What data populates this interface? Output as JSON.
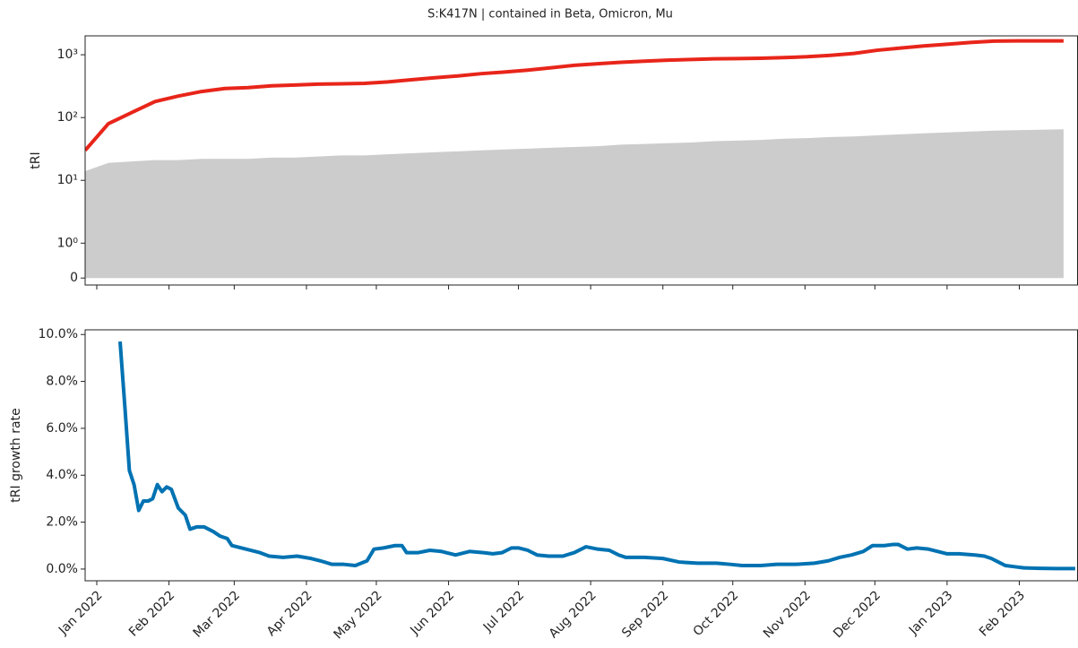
{
  "chart_data": [
    {
      "type": "line",
      "title": "S:K417N | contained in Beta, Omicron, Mu",
      "ylabel": "tRI",
      "yscale": "symlog",
      "linthresh": 1,
      "linscale": 0.5,
      "x": [
        -5,
        5,
        15,
        25,
        35,
        45,
        55,
        65,
        75,
        85,
        95,
        105,
        115,
        125,
        135,
        145,
        155,
        165,
        175,
        185,
        195,
        205,
        215,
        225,
        235,
        245,
        255,
        265,
        275,
        285,
        295,
        305,
        315,
        325,
        335,
        345,
        355,
        365,
        375,
        385,
        395,
        405,
        415
      ],
      "series": [
        {
          "color": "#cccccc",
          "fill": true,
          "values": [
            14,
            19,
            20,
            21,
            21,
            22,
            22,
            22,
            23,
            23,
            24,
            25,
            25,
            26,
            27,
            28,
            29,
            30,
            31,
            32,
            33,
            34,
            35,
            37,
            38,
            39,
            40,
            42,
            43,
            44,
            46,
            47,
            49,
            50,
            52,
            54,
            56,
            58,
            60,
            62,
            63,
            64,
            65
          ]
        },
        {
          "color": "#e8251a",
          "fill": false,
          "values": [
            30,
            80,
            120,
            180,
            220,
            260,
            290,
            300,
            320,
            330,
            340,
            345,
            350,
            370,
            400,
            430,
            460,
            500,
            530,
            570,
            620,
            680,
            720,
            760,
            790,
            820,
            840,
            860,
            870,
            880,
            900,
            930,
            980,
            1050,
            1180,
            1280,
            1380,
            1470,
            1570,
            1650,
            1660,
            1660,
            1660
          ]
        }
      ],
      "xlim": [
        -5,
        421
      ],
      "xticks": [
        0,
        31,
        59,
        90,
        120,
        151,
        181,
        212,
        243,
        273,
        304,
        334,
        365,
        396
      ],
      "ylim": [
        -0.2,
        2000
      ],
      "yticks": [
        0,
        {
          "value": 1,
          "label": "10⁰"
        },
        {
          "value": 10,
          "label": "10¹"
        },
        {
          "value": 100,
          "label": "10²"
        },
        {
          "value": 1000,
          "label": "10³"
        }
      ]
    },
    {
      "type": "line",
      "ylabel": "tRI growth rate",
      "x": [
        10,
        12,
        14,
        16,
        18,
        20,
        22,
        24,
        26,
        28,
        30,
        32,
        35,
        38,
        40,
        43,
        46,
        50,
        53,
        56,
        58,
        62,
        66,
        70,
        74,
        80,
        86,
        92,
        96,
        101,
        106,
        111,
        116,
        119,
        123,
        128,
        131,
        133,
        138,
        143,
        148,
        154,
        160,
        166,
        170,
        174,
        178,
        181,
        185,
        189,
        194,
        200,
        205,
        210,
        215,
        220,
        224,
        227,
        235,
        243,
        250,
        258,
        266,
        272,
        277,
        285,
        292,
        300,
        308,
        314,
        319,
        324,
        329,
        333,
        338,
        342,
        344,
        348,
        352,
        357,
        361,
        365,
        370,
        377,
        381,
        384,
        387,
        390,
        394,
        398,
        405,
        412,
        420
      ],
      "series": [
        {
          "color": "#0072b2",
          "fill": false,
          "values": [
            9.7,
            7,
            4.2,
            3.6,
            2.5,
            2.9,
            2.9,
            3.0,
            3.6,
            3.3,
            3.5,
            3.4,
            2.6,
            2.3,
            1.7,
            1.8,
            1.8,
            1.6,
            1.4,
            1.3,
            1.0,
            0.9,
            0.8,
            0.7,
            0.55,
            0.5,
            0.55,
            0.45,
            0.35,
            0.2,
            0.2,
            0.15,
            0.35,
            0.85,
            0.9,
            1.0,
            1.0,
            0.7,
            0.7,
            0.8,
            0.75,
            0.6,
            0.75,
            0.7,
            0.65,
            0.7,
            0.9,
            0.9,
            0.8,
            0.6,
            0.55,
            0.55,
            0.7,
            0.95,
            0.85,
            0.8,
            0.6,
            0.5,
            0.5,
            0.45,
            0.3,
            0.25,
            0.25,
            0.2,
            0.15,
            0.15,
            0.2,
            0.2,
            0.25,
            0.35,
            0.5,
            0.6,
            0.75,
            1.0,
            1.0,
            1.05,
            1.05,
            0.85,
            0.9,
            0.85,
            0.75,
            0.65,
            0.65,
            0.6,
            0.55,
            0.45,
            0.3,
            0.15,
            0.1,
            0.05,
            0.03,
            0.02,
            0.02
          ]
        }
      ],
      "xlim": [
        -5,
        421
      ],
      "xticks": [
        {
          "value": 0,
          "label": "Jan 2022"
        },
        {
          "value": 31,
          "label": "Feb 2022"
        },
        {
          "value": 59,
          "label": "Mar 2022"
        },
        {
          "value": 90,
          "label": "Apr 2022"
        },
        {
          "value": 120,
          "label": "May 2022"
        },
        {
          "value": 151,
          "label": "Jun 2022"
        },
        {
          "value": 181,
          "label": "Jul 2022"
        },
        {
          "value": 212,
          "label": "Aug 2022"
        },
        {
          "value": 243,
          "label": "Sep 2022"
        },
        {
          "value": 273,
          "label": "Oct 2022"
        },
        {
          "value": 304,
          "label": "Nov 2022"
        },
        {
          "value": 334,
          "label": "Dec 2022"
        },
        {
          "value": 365,
          "label": "Jan 2023"
        },
        {
          "value": 396,
          "label": "Feb 2023"
        }
      ],
      "ylim": [
        -0.5,
        10.2
      ],
      "yticks": [
        {
          "value": 0,
          "label": "0.0%"
        },
        {
          "value": 2,
          "label": "2.0%"
        },
        {
          "value": 4,
          "label": "4.0%"
        },
        {
          "value": 6,
          "label": "6.0%"
        },
        {
          "value": 8,
          "label": "8.0%"
        },
        {
          "value": 10,
          "label": "10.0%"
        }
      ]
    }
  ]
}
